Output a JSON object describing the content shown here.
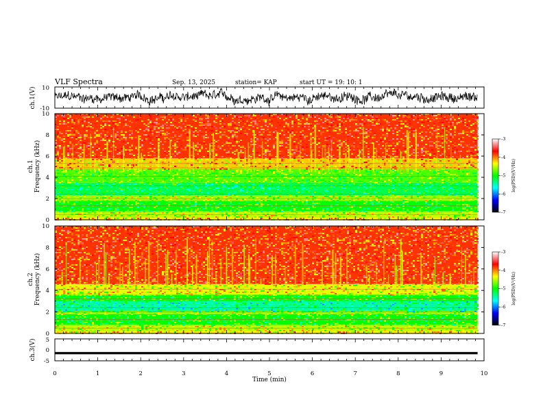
{
  "header": {
    "title": "VLF Spectra",
    "date": "Sep. 13, 2025",
    "station": "station= KAP",
    "start_time": "start  UT =   19: 10: 1"
  },
  "colors": {
    "axis": "#000000",
    "ch1_trace": "#000000",
    "ch3_band": "#000000",
    "spec_red": "#e8362b",
    "spec_yellow": "#f2e21a",
    "spec_green": "#33e016",
    "spec_cyan": "#19e8c9"
  },
  "colorbar": {
    "stops": [
      "#000000",
      "#0000ff",
      "#00ffff",
      "#00ff00",
      "#ffff00",
      "#ff0000",
      "#ffffff"
    ],
    "label": "log(PSD)(V²/Hz)",
    "ticks": [
      "-3",
      "-4",
      "-5",
      "-6",
      "-7"
    ],
    "range": [
      -7,
      -3
    ]
  },
  "chart_data": [
    {
      "type": "line",
      "name": "ch1-waveform",
      "ylabel": "ch.1(V)",
      "ylim": [
        -10,
        10
      ],
      "yticks": [
        "10",
        "-10"
      ],
      "x_range_min": [
        0,
        9.85
      ],
      "approx_level_v": 0,
      "approx_amplitude_v": 6
    },
    {
      "type": "heatmap",
      "name": "ch1-spectrogram",
      "ylabel_channel": "ch.1",
      "ylabel": "Frequency (kHz)",
      "ylim": [
        0,
        10
      ],
      "yticks": [
        "0",
        "2",
        "4",
        "6",
        "8",
        "10"
      ],
      "x_range_min": [
        0,
        9.85
      ],
      "bands": [
        {
          "from_khz": 0,
          "to_khz": 0.2,
          "log_psd": -4.3
        },
        {
          "from_khz": 0.2,
          "to_khz": 0.8,
          "log_psd": -4.5
        },
        {
          "from_khz": 0.8,
          "to_khz": 1.8,
          "log_psd": -5.0
        },
        {
          "from_khz": 1.8,
          "to_khz": 2.3,
          "log_psd": -4.6
        },
        {
          "from_khz": 2.3,
          "to_khz": 3.5,
          "log_psd": -5.2
        },
        {
          "from_khz": 3.5,
          "to_khz": 4.8,
          "log_psd": -4.8
        },
        {
          "from_khz": 4.8,
          "to_khz": 5.8,
          "log_psd": -4.2
        },
        {
          "from_khz": 5.8,
          "to_khz": 10,
          "log_psd": -3.8
        }
      ]
    },
    {
      "type": "heatmap",
      "name": "ch2-spectrogram",
      "ylabel_channel": "ch.2",
      "ylabel": "Frequency (kHz)",
      "ylim": [
        0,
        10
      ],
      "yticks": [
        "0",
        "2",
        "4",
        "6",
        "8",
        "10"
      ],
      "x_range_min": [
        0,
        9.85
      ],
      "bands": [
        {
          "from_khz": 0,
          "to_khz": 0.2,
          "log_psd": -4.3
        },
        {
          "from_khz": 0.2,
          "to_khz": 0.8,
          "log_psd": -4.5
        },
        {
          "from_khz": 0.8,
          "to_khz": 1.8,
          "log_psd": -5.0
        },
        {
          "from_khz": 1.8,
          "to_khz": 2.1,
          "log_psd": -4.6
        },
        {
          "from_khz": 2.1,
          "to_khz": 3.0,
          "log_psd": -5.4
        },
        {
          "from_khz": 3.0,
          "to_khz": 3.6,
          "log_psd": -5.0
        },
        {
          "from_khz": 3.6,
          "to_khz": 4.6,
          "log_psd": -4.4
        },
        {
          "from_khz": 4.6,
          "to_khz": 10,
          "log_psd": -3.8
        }
      ]
    },
    {
      "type": "line",
      "name": "ch3-waveform",
      "ylabel": "ch.3(V)",
      "ylim": [
        -5,
        5
      ],
      "yticks": [
        "5",
        "0",
        "-5"
      ],
      "x_range_min": [
        0,
        9.85
      ],
      "approx_level_v": -1.5,
      "approx_amplitude_v": 0.5
    }
  ],
  "xaxis": {
    "label": "Time (min)",
    "xlim": [
      0,
      10
    ],
    "ticks": [
      "0",
      "1",
      "2",
      "3",
      "4",
      "5",
      "6",
      "7",
      "8",
      "9",
      "10"
    ]
  }
}
